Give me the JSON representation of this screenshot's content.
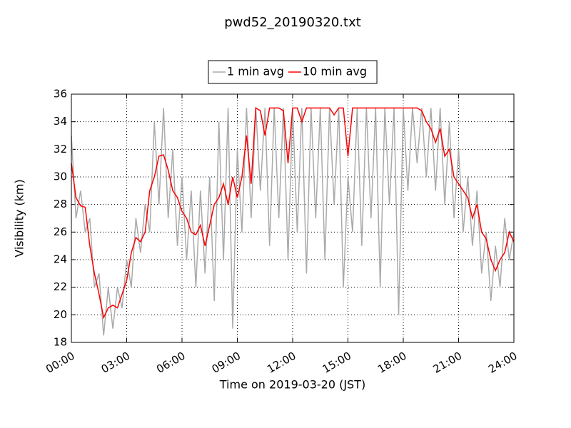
{
  "chart_data": {
    "type": "line",
    "title": "pwd52_20190320.txt",
    "xlabel": "Time on 2019-03-20 (JST)",
    "ylabel": "Visibility (km)",
    "x": [
      0,
      0.25,
      0.5,
      0.75,
      1,
      1.25,
      1.5,
      1.75,
      2,
      2.25,
      2.5,
      2.75,
      3,
      3.25,
      3.5,
      3.75,
      4,
      4.25,
      4.5,
      4.75,
      5,
      5.25,
      5.5,
      5.75,
      6,
      6.25,
      6.5,
      6.75,
      7,
      7.25,
      7.5,
      7.75,
      8,
      8.25,
      8.5,
      8.75,
      9,
      9.25,
      9.5,
      9.75,
      10,
      10.25,
      10.5,
      10.75,
      11,
      11.25,
      11.5,
      11.75,
      12,
      12.25,
      12.5,
      12.75,
      13,
      13.25,
      13.5,
      13.75,
      14,
      14.25,
      14.5,
      14.75,
      15,
      15.25,
      15.5,
      15.75,
      16,
      16.25,
      16.5,
      16.75,
      17,
      17.25,
      17.5,
      17.75,
      18,
      18.25,
      18.5,
      18.75,
      19,
      19.25,
      19.5,
      19.75,
      20,
      20.25,
      20.5,
      20.75,
      21,
      21.25,
      21.5,
      21.75,
      22,
      22.25,
      22.5,
      22.75,
      23,
      23.25,
      23.5,
      23.75,
      24
    ],
    "series": [
      {
        "name": "1 min avg",
        "color": "#aaaaaa",
        "values": [
          33,
          27,
          29,
          26,
          27,
          22,
          23,
          18.5,
          22,
          19,
          22,
          20.5,
          24,
          22,
          27,
          24.5,
          28,
          26,
          34,
          28,
          35,
          27,
          32,
          25,
          30,
          24,
          29,
          22,
          29,
          23,
          30,
          21,
          34,
          24,
          35,
          19,
          32,
          26,
          35,
          27,
          35,
          29,
          35,
          25,
          35,
          27,
          35,
          24,
          35,
          26,
          35,
          23,
          35,
          27,
          35,
          24,
          35,
          28,
          35,
          22,
          30,
          26,
          35,
          25,
          35,
          27,
          35,
          22,
          35,
          28,
          35,
          20,
          35,
          29,
          35,
          31,
          35,
          30,
          35,
          29,
          35,
          28,
          34,
          27,
          32,
          26,
          30,
          25,
          29,
          23,
          26,
          21,
          25,
          22,
          27,
          24,
          26
        ]
      },
      {
        "name": "10 min avg",
        "color": "#ff0000",
        "values": [
          31,
          28.5,
          27.9,
          27.8,
          25,
          23,
          21.5,
          19.8,
          20.5,
          20.7,
          20.5,
          21.5,
          22.5,
          24.5,
          25.6,
          25.3,
          26,
          29,
          30,
          31.5,
          31.6,
          30.5,
          29,
          28.5,
          27.5,
          27,
          26,
          25.8,
          26.5,
          25,
          26.5,
          28,
          28.5,
          29.5,
          28,
          30,
          28.5,
          30,
          33,
          29.5,
          35,
          34.8,
          33,
          35,
          35,
          35,
          34.8,
          31,
          35,
          35,
          34,
          35,
          35,
          35,
          35,
          35,
          35,
          34.5,
          35,
          35,
          31.5,
          35,
          35,
          35,
          35,
          35,
          35,
          35,
          35,
          35,
          35,
          35,
          35,
          35,
          35,
          35,
          34.8,
          34,
          33.5,
          32.5,
          33.5,
          31.5,
          32,
          30,
          29.5,
          29,
          28.5,
          27,
          28,
          26,
          25.5,
          24,
          23.2,
          24,
          24.5,
          26,
          25.3
        ]
      }
    ],
    "xlim": [
      0,
      24
    ],
    "xticks": [
      {
        "value": 0,
        "label": "00:00"
      },
      {
        "value": 3,
        "label": "03:00"
      },
      {
        "value": 6,
        "label": "06:00"
      },
      {
        "value": 9,
        "label": "09:00"
      },
      {
        "value": 12,
        "label": "12:00"
      },
      {
        "value": 15,
        "label": "15:00"
      },
      {
        "value": 18,
        "label": "18:00"
      },
      {
        "value": 21,
        "label": "21:00"
      },
      {
        "value": 24,
        "label": "24:00"
      }
    ],
    "ylim": [
      18,
      36
    ],
    "yticks": [
      18,
      20,
      22,
      24,
      26,
      28,
      30,
      32,
      34,
      36
    ],
    "grid": true,
    "legend": "top"
  }
}
